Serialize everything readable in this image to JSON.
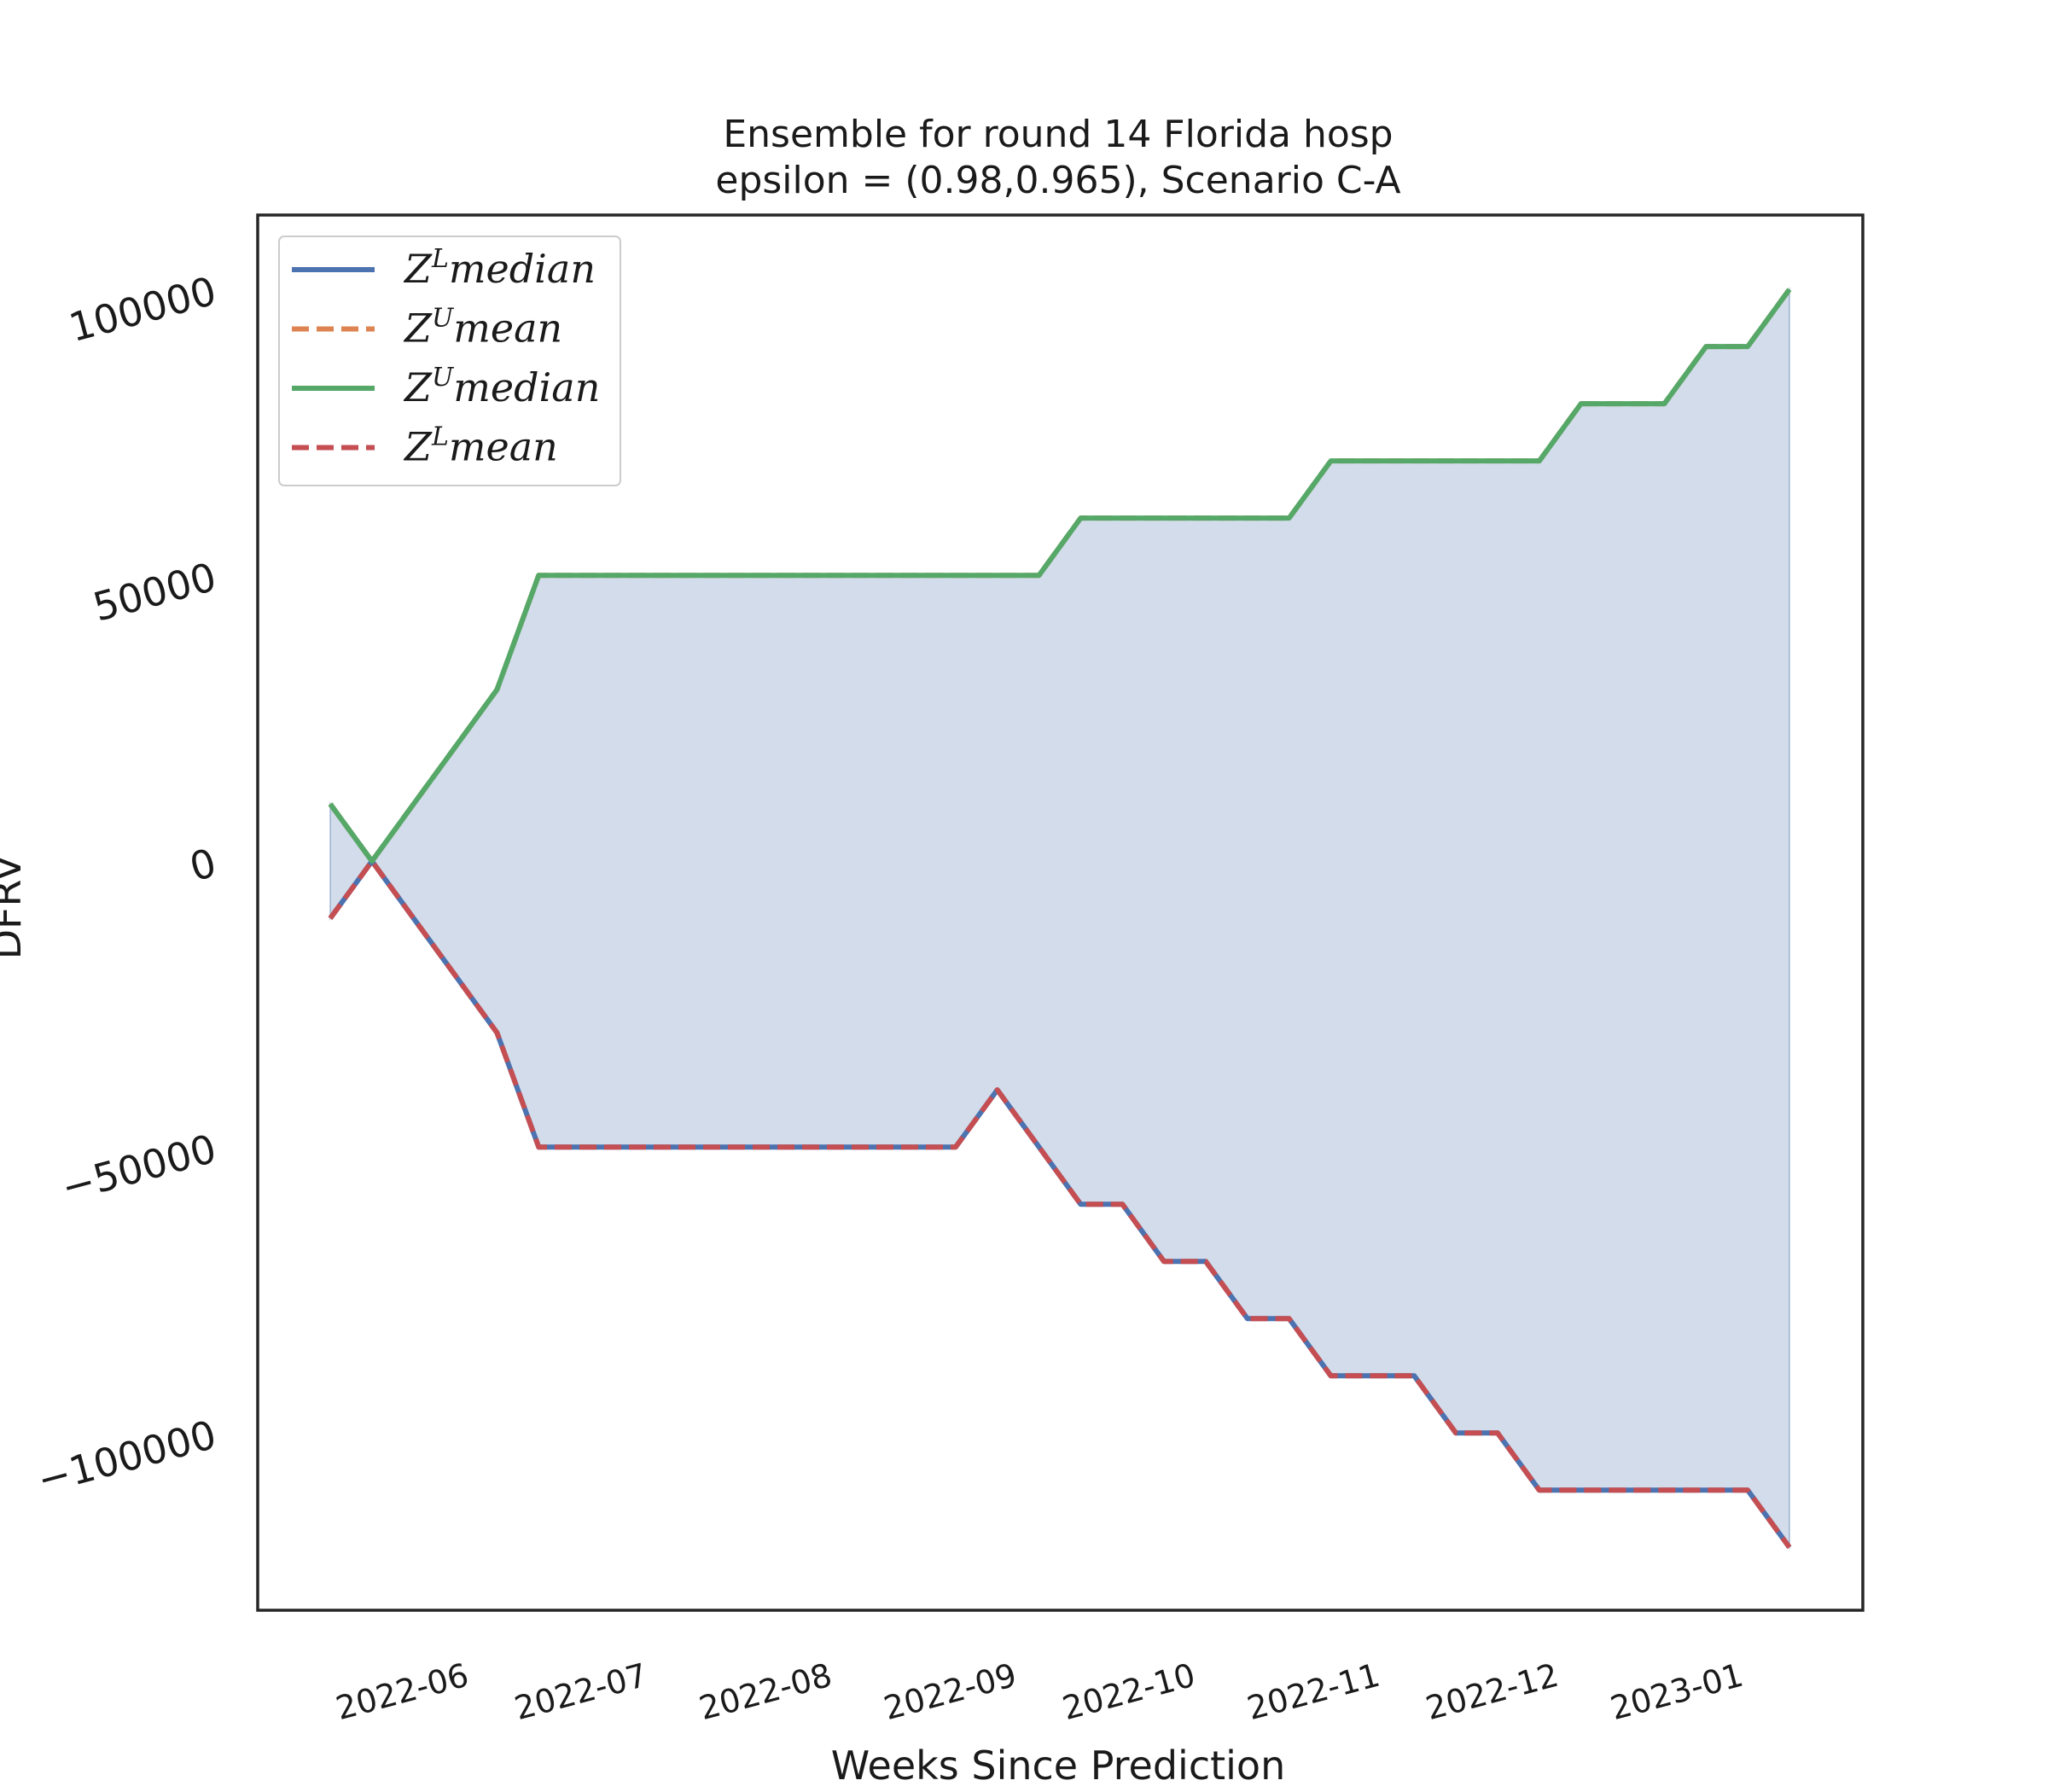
{
  "chart_data": {
    "type": "line",
    "title": "Ensemble for round 14 Florida  hosp",
    "subtitle": "epsilon = (0.98,0.965), Scenario C-A",
    "xlabel": "Weeks Since Prediction",
    "ylabel": "DFRV",
    "ylim": [
      -131000,
      113000
    ],
    "x_tick_labels": [
      "2022-06",
      "2022-07",
      "2022-08",
      "2022-09",
      "2022-10",
      "2022-11",
      "2022-12",
      "2023-01"
    ],
    "y_ticks": [
      100000,
      50000,
      0,
      -50000,
      -100000
    ],
    "y_tick_labels": [
      "100000",
      "50000",
      "0",
      "−50000",
      "−100000"
    ],
    "legend_position": "upper left",
    "grid": false,
    "x": [
      "2022-05-18",
      "2022-05-25",
      "2022-06-01",
      "2022-06-08",
      "2022-06-15",
      "2022-06-22",
      "2022-06-29",
      "2022-07-06",
      "2022-07-13",
      "2022-07-20",
      "2022-07-27",
      "2022-08-03",
      "2022-08-10",
      "2022-08-17",
      "2022-08-24",
      "2022-08-31",
      "2022-09-07",
      "2022-09-14",
      "2022-09-21",
      "2022-09-28",
      "2022-10-05",
      "2022-10-12",
      "2022-10-19",
      "2022-10-26",
      "2022-11-02",
      "2022-11-09",
      "2022-11-16",
      "2022-11-23",
      "2022-11-30",
      "2022-12-07",
      "2022-12-14",
      "2022-12-21",
      "2022-12-28",
      "2023-01-04",
      "2023-01-11",
      "2023-01-18"
    ],
    "series": [
      {
        "name": "$Z^L median$",
        "legend": {
          "base": "Z",
          "sup": "L",
          "rest": "median"
        },
        "color": "#4c72b0",
        "style": "solid",
        "values": [
          -10000,
          0,
          -10000,
          -20000,
          -30000,
          -50000,
          -50000,
          -50000,
          -50000,
          -50000,
          -50000,
          -50000,
          -50000,
          -50000,
          -50000,
          -50000,
          -40000,
          -50000,
          -60000,
          -60000,
          -70000,
          -70000,
          -80000,
          -80000,
          -90000,
          -90000,
          -90000,
          -100000,
          -100000,
          -110000,
          -110000,
          -110000,
          -110000,
          -110000,
          -110000,
          -120000
        ]
      },
      {
        "name": "$Z^U mean$",
        "legend": {
          "base": "Z",
          "sup": "U",
          "rest": "mean"
        },
        "color": "#dd8452",
        "style": "dashed",
        "values": [
          10000,
          0,
          10000,
          20000,
          30000,
          50000,
          50000,
          50000,
          50000,
          50000,
          50000,
          50000,
          50000,
          50000,
          50000,
          50000,
          50000,
          50000,
          60000,
          60000,
          60000,
          60000,
          60000,
          60000,
          70000,
          70000,
          70000,
          70000,
          70000,
          70000,
          80000,
          80000,
          80000,
          90000,
          90000,
          100000
        ]
      },
      {
        "name": "$Z^U median$",
        "legend": {
          "base": "Z",
          "sup": "U",
          "rest": "median"
        },
        "color": "#55a868",
        "style": "solid",
        "values": [
          10000,
          0,
          10000,
          20000,
          30000,
          50000,
          50000,
          50000,
          50000,
          50000,
          50000,
          50000,
          50000,
          50000,
          50000,
          50000,
          50000,
          50000,
          60000,
          60000,
          60000,
          60000,
          60000,
          60000,
          70000,
          70000,
          70000,
          70000,
          70000,
          70000,
          80000,
          80000,
          80000,
          90000,
          90000,
          100000
        ]
      },
      {
        "name": "$Z^L mean$",
        "legend": {
          "base": "Z",
          "sup": "L",
          "rest": "mean"
        },
        "color": "#c44e52",
        "style": "dashed",
        "values": [
          -10000,
          0,
          -10000,
          -20000,
          -30000,
          -50000,
          -50000,
          -50000,
          -50000,
          -50000,
          -50000,
          -50000,
          -50000,
          -50000,
          -50000,
          -50000,
          -40000,
          -50000,
          -60000,
          -60000,
          -70000,
          -70000,
          -80000,
          -80000,
          -90000,
          -90000,
          -90000,
          -100000,
          -100000,
          -110000,
          -110000,
          -110000,
          -110000,
          -110000,
          -110000,
          -120000
        ]
      }
    ],
    "fill_between": {
      "lower": "$Z^L median$",
      "upper": "$Z^U median$",
      "color": "#4c72b0",
      "alpha": 0.25
    }
  }
}
